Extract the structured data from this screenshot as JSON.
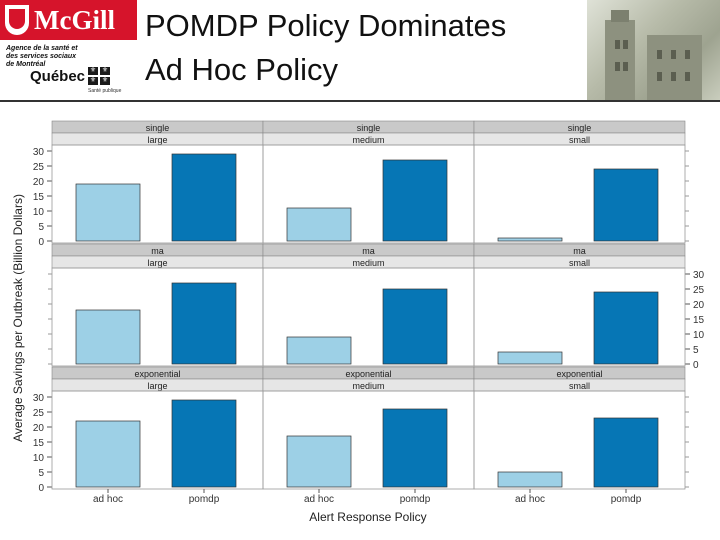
{
  "header": {
    "logo_text": "McGill",
    "agency_text": "Agence de la santé et des services sociaux de Montréal",
    "quebec_text": "Québec",
    "sante_text": "Santé publique",
    "title_line1": "POMDP Policy Dominates",
    "title_line2": "Ad Hoc Policy"
  },
  "colors": {
    "ad_hoc_bar": "#9dd0e6",
    "pomdp_bar": "#0676b5",
    "strip_top": "#c9c9c9",
    "strip_bottom": "#e6e6e6",
    "header_red": "#d6142b"
  },
  "chart_data": {
    "type": "bar",
    "xlabel": "Alert Response Policy",
    "ylabel": "Average Savings per Outbreak (Billion Dollars)",
    "categories": [
      "ad hoc",
      "pomdp"
    ],
    "ylim": [
      0,
      30
    ],
    "yticks": [
      0,
      5,
      10,
      15,
      20,
      25,
      30
    ],
    "layout": "3x3 lattice",
    "panels": [
      {
        "strip_top": "single",
        "strip_bottom": "large",
        "values": [
          19,
          29
        ]
      },
      {
        "strip_top": "single",
        "strip_bottom": "medium",
        "values": [
          11,
          27
        ]
      },
      {
        "strip_top": "single",
        "strip_bottom": "small",
        "values": [
          1,
          24
        ]
      },
      {
        "strip_top": "ma",
        "strip_bottom": "large",
        "values": [
          18,
          27
        ]
      },
      {
        "strip_top": "ma",
        "strip_bottom": "medium",
        "values": [
          9,
          25
        ]
      },
      {
        "strip_top": "ma",
        "strip_bottom": "small",
        "values": [
          4,
          24
        ]
      },
      {
        "strip_top": "exponential",
        "strip_bottom": "large",
        "values": [
          22,
          29
        ]
      },
      {
        "strip_top": "exponential",
        "strip_bottom": "medium",
        "values": [
          17,
          26
        ]
      },
      {
        "strip_top": "exponential",
        "strip_bottom": "small",
        "values": [
          5,
          23
        ]
      }
    ]
  }
}
